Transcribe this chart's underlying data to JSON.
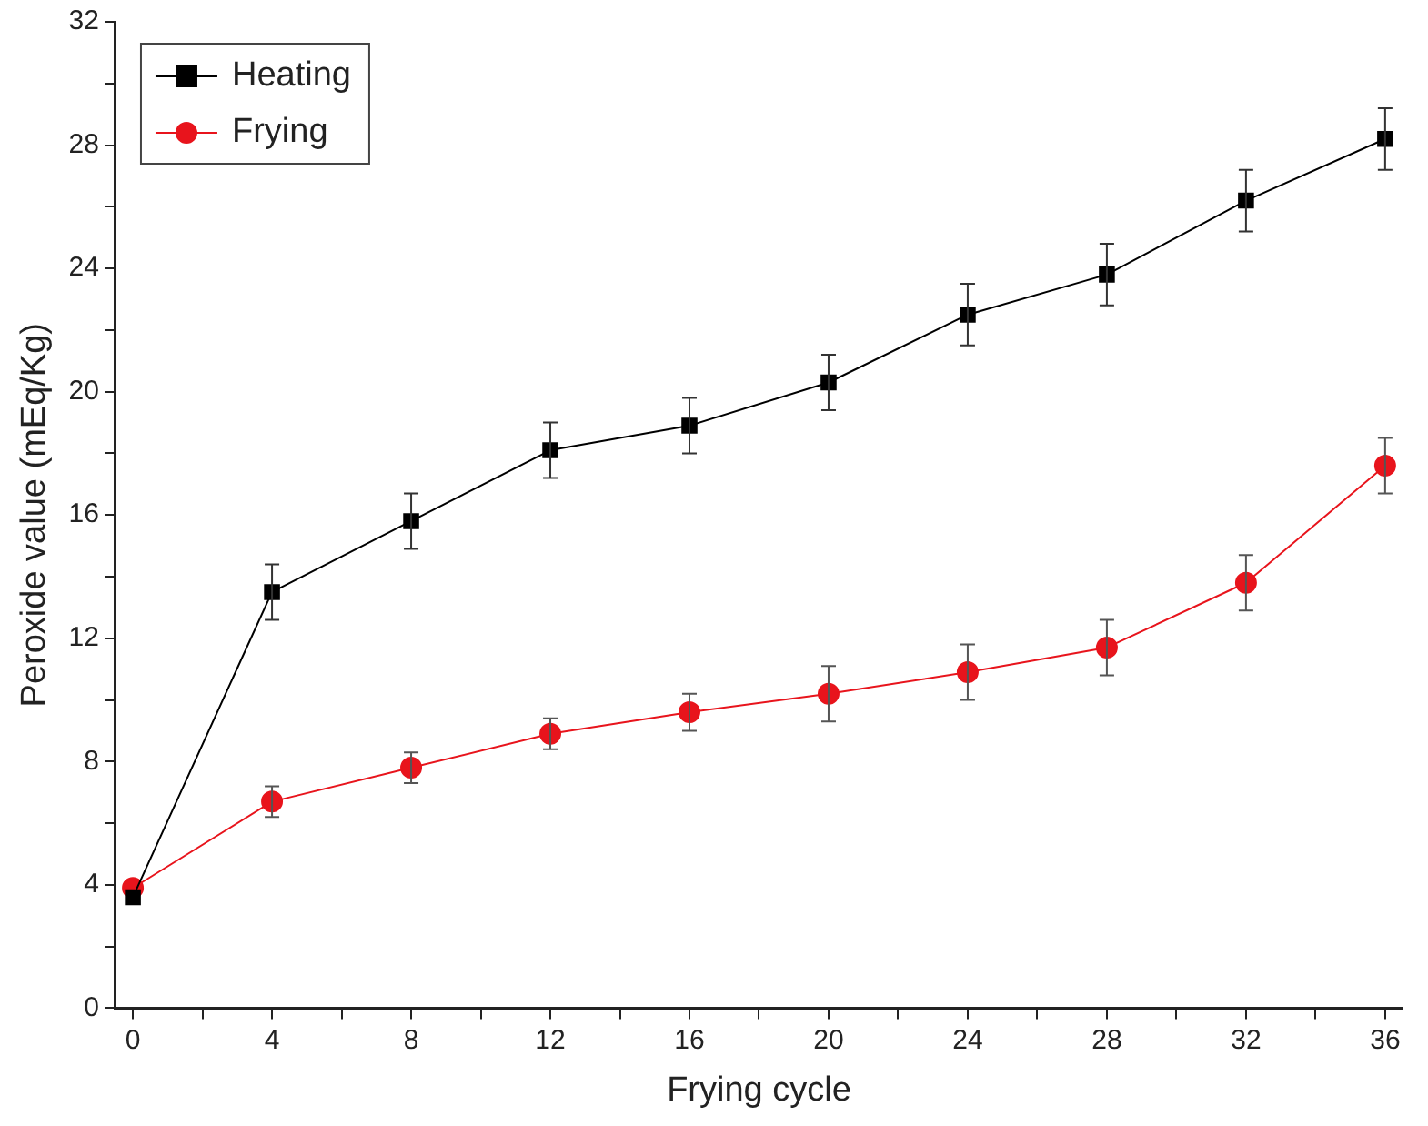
{
  "chart_data": {
    "type": "line",
    "xlabel": "Frying cycle",
    "ylabel": "Peroxide value (mEq/Kg)",
    "x": [
      0,
      4,
      8,
      12,
      16,
      20,
      24,
      28,
      32,
      36
    ],
    "series": [
      {
        "name": "Heating",
        "color": "#000000",
        "marker": "square",
        "values": [
          3.6,
          13.5,
          15.8,
          18.1,
          18.9,
          20.3,
          22.5,
          23.8,
          26.2,
          28.2
        ],
        "errors": [
          null,
          0.9,
          0.9,
          0.9,
          0.9,
          0.9,
          1,
          1,
          1,
          1
        ]
      },
      {
        "name": "Frying",
        "color": "#e8141c",
        "marker": "circle",
        "values": [
          3.9,
          6.7,
          7.8,
          8.9,
          9.6,
          10.2,
          10.9,
          11.7,
          13.8,
          17.6
        ],
        "errors": [
          null,
          0.5,
          0.5,
          0.5,
          0.6,
          0.9,
          0.9,
          0.9,
          0.9,
          0.9
        ]
      }
    ],
    "xlim": [
      -0.5,
      36.5
    ],
    "xticks": [
      0,
      {
        "value": 2,
        "label": null
      },
      4,
      {
        "value": 6,
        "label": null
      },
      8,
      {
        "value": 10,
        "label": null
      },
      12,
      {
        "value": 14,
        "label": null
      },
      16,
      {
        "value": 18,
        "label": null
      },
      20,
      {
        "value": 22,
        "label": null
      },
      24,
      {
        "value": 26,
        "label": null
      },
      28,
      {
        "value": 30,
        "label": null
      },
      32,
      {
        "value": 34,
        "label": null
      },
      36
    ],
    "ylim": [
      0,
      32
    ],
    "yticks": [
      0,
      {
        "value": 2,
        "label": null
      },
      4,
      {
        "value": 6,
        "label": null
      },
      8,
      {
        "value": 10,
        "label": null
      },
      12,
      {
        "value": 14,
        "label": null
      },
      16,
      {
        "value": 18,
        "label": null
      },
      20,
      {
        "value": 22,
        "label": null
      },
      24,
      {
        "value": 26,
        "label": null
      },
      28,
      {
        "value": 30,
        "label": null
      },
      32
    ],
    "legend": "top left",
    "line_style": "solid",
    "grid": false
  }
}
